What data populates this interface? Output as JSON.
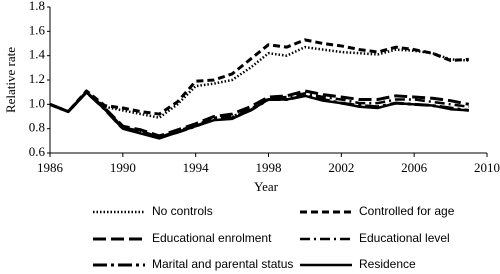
{
  "chart_data": {
    "type": "line",
    "x_label": "Year",
    "y_label": "Relative rate",
    "x": [
      1986,
      1987,
      1988,
      1989,
      1990,
      1991,
      1992,
      1993,
      1994,
      1995,
      1996,
      1997,
      1998,
      1999,
      2000,
      2001,
      2002,
      2003,
      2004,
      2005,
      2006,
      2007,
      2008,
      2009
    ],
    "xlim": [
      1986,
      2010
    ],
    "xticks": [
      1986,
      1990,
      1994,
      1998,
      2002,
      2006,
      2010
    ],
    "ylim": [
      0.6,
      1.8
    ],
    "yticks": [
      0.6,
      0.8,
      {
        "value": 1,
        "label": "1.0"
      },
      1.2,
      1.4,
      1.6,
      1.8
    ],
    "grid": false,
    "series": [
      {
        "name": "No controls",
        "color": "#000000",
        "dash": "dotted",
        "values": [
          1.0,
          0.94,
          1.1,
          0.98,
          0.95,
          0.92,
          0.89,
          1.0,
          1.15,
          1.17,
          1.2,
          1.3,
          1.42,
          1.4,
          1.47,
          1.45,
          1.43,
          1.42,
          1.41,
          1.45,
          1.44,
          1.42,
          1.37,
          1.36
        ]
      },
      {
        "name": "Controlled for age",
        "color": "#000000",
        "dash": "short-dash",
        "values": [
          1.0,
          0.94,
          1.11,
          0.99,
          0.97,
          0.94,
          0.92,
          1.02,
          1.19,
          1.2,
          1.25,
          1.37,
          1.49,
          1.47,
          1.53,
          1.5,
          1.48,
          1.45,
          1.43,
          1.47,
          1.45,
          1.42,
          1.36,
          1.37
        ]
      },
      {
        "name": "Educational enrolment",
        "color": "#000000",
        "dash": "long-dash",
        "values": [
          1.0,
          0.94,
          1.1,
          0.97,
          0.82,
          0.79,
          0.74,
          0.79,
          0.84,
          0.9,
          0.92,
          0.98,
          1.06,
          1.07,
          1.11,
          1.08,
          1.06,
          1.04,
          1.04,
          1.07,
          1.06,
          1.05,
          1.03,
          1.0
        ]
      },
      {
        "name": "Educational level",
        "color": "#000000",
        "dash": "dash-dot",
        "values": [
          1.0,
          0.94,
          1.1,
          0.97,
          0.81,
          0.78,
          0.73,
          0.78,
          0.83,
          0.89,
          0.9,
          0.96,
          1.05,
          1.06,
          1.09,
          1.06,
          1.04,
          1.01,
          1.01,
          1.04,
          1.04,
          1.02,
          1.0,
          0.98
        ]
      },
      {
        "name": "Marital and parental status",
        "color": "#000000",
        "dash": "long-dash-dot",
        "values": [
          1.0,
          0.94,
          1.1,
          0.96,
          0.8,
          0.77,
          0.73,
          0.77,
          0.82,
          0.88,
          0.89,
          0.95,
          1.04,
          1.04,
          1.07,
          1.04,
          1.01,
          0.99,
          0.98,
          1.01,
          1.0,
          0.99,
          0.97,
          0.95
        ]
      },
      {
        "name": "Residence",
        "color": "#000000",
        "dash": "solid",
        "values": [
          1.0,
          0.94,
          1.1,
          0.96,
          0.8,
          0.76,
          0.72,
          0.77,
          0.82,
          0.87,
          0.88,
          0.95,
          1.04,
          1.04,
          1.07,
          1.03,
          1.01,
          0.98,
          0.97,
          1.01,
          1.0,
          0.99,
          0.96,
          0.95
        ]
      }
    ]
  }
}
